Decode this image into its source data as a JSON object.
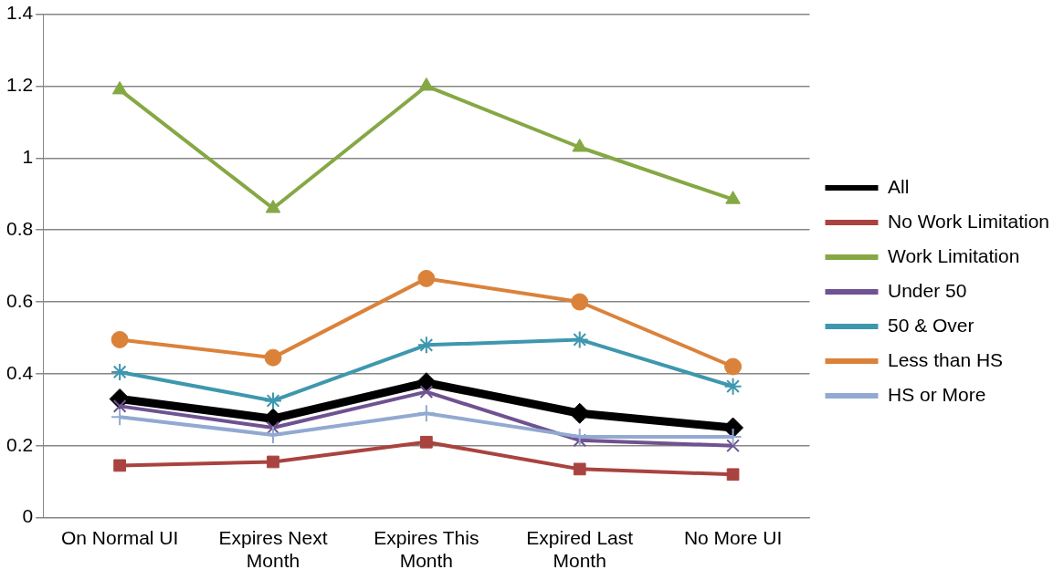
{
  "chart_data": {
    "type": "line",
    "categories": [
      "On Normal UI",
      "Expires Next Month",
      "Expires This Month",
      "Expired Last Month",
      "No More UI"
    ],
    "series": [
      {
        "name": "All",
        "color": "#000000",
        "marker": "diamond",
        "values": [
          0.33,
          0.275,
          0.375,
          0.29,
          0.25
        ]
      },
      {
        "name": "No Work Limitation",
        "color": "#a9433f",
        "marker": "square",
        "values": [
          0.145,
          0.155,
          0.21,
          0.135,
          0.12
        ]
      },
      {
        "name": "Work Limitation",
        "color": "#86a844",
        "marker": "triangle",
        "values": [
          1.19,
          0.86,
          1.2,
          1.03,
          0.885
        ]
      },
      {
        "name": "Under 50",
        "color": "#6f5291",
        "marker": "cross",
        "values": [
          0.31,
          0.25,
          0.35,
          0.215,
          0.2
        ]
      },
      {
        "name": "50 & Over",
        "color": "#3e97ae",
        "marker": "cross",
        "values": [
          0.405,
          0.325,
          0.48,
          0.495,
          0.365
        ]
      },
      {
        "name": "Less than HS",
        "color": "#db823a",
        "marker": "circle",
        "values": [
          0.495,
          0.445,
          0.665,
          0.6,
          0.42
        ]
      },
      {
        "name": "HS or More",
        "color": "#92a9d1",
        "marker": "cross",
        "values": [
          0.28,
          0.23,
          0.29,
          0.225,
          0.225
        ]
      }
    ],
    "ylim": [
      0,
      1.4
    ],
    "yticks": [
      0,
      0.2,
      0.4,
      0.6,
      0.8,
      1,
      1.2,
      1.4
    ],
    "grid": "y",
    "legend": "right"
  }
}
